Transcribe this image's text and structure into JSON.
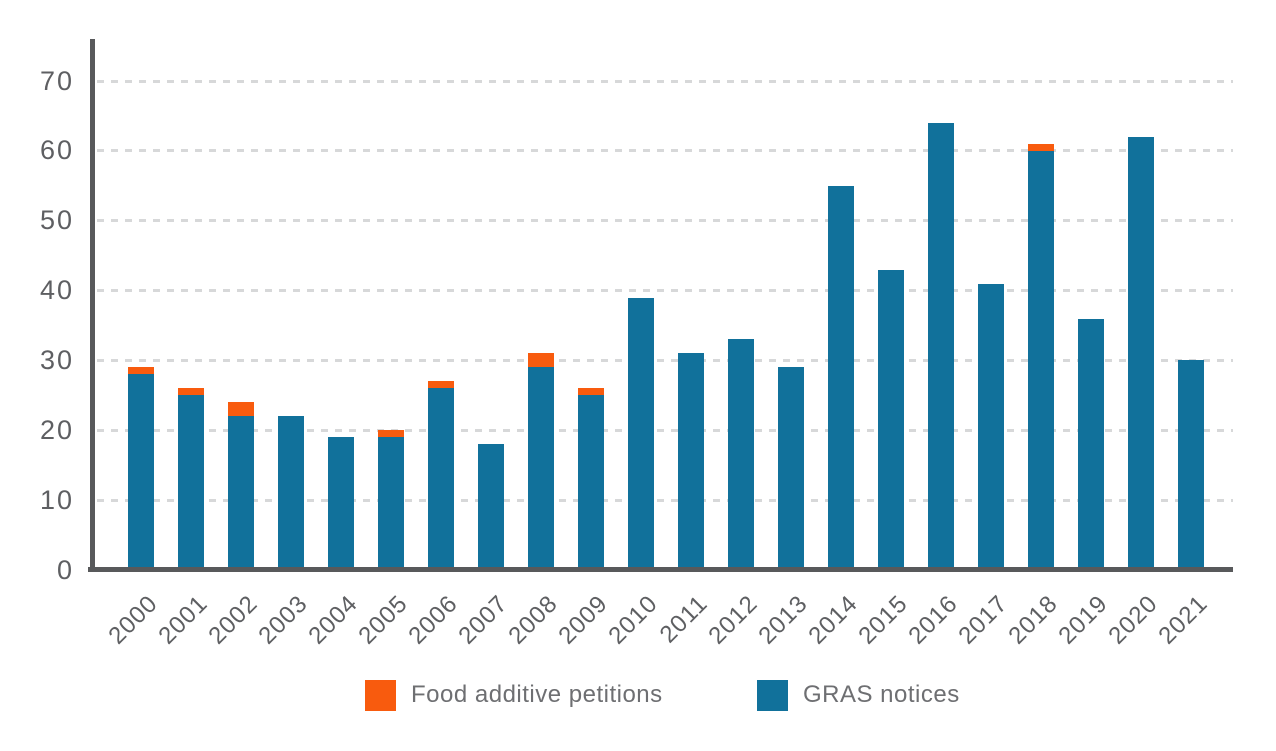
{
  "chart_data": {
    "type": "bar",
    "stacked": true,
    "title": "",
    "xlabel": "",
    "ylabel": "",
    "categories": [
      "2000",
      "2001",
      "2002",
      "2003",
      "2004",
      "2005",
      "2006",
      "2007",
      "2008",
      "2009",
      "2010",
      "2011",
      "2012",
      "2013",
      "2014",
      "2015",
      "2016",
      "2017",
      "2018",
      "2019",
      "2020",
      "2021"
    ],
    "series": [
      {
        "name": "Food additive petitions",
        "color": "#F85B0E",
        "stack_position": "top",
        "values": [
          1,
          1,
          2,
          0,
          0,
          1,
          1,
          0,
          2,
          1,
          0,
          0,
          0,
          0,
          0,
          0,
          0,
          0,
          1,
          0,
          0,
          0
        ]
      },
      {
        "name": "GRAS notices",
        "color": "#11719B",
        "stack_position": "bottom",
        "values": [
          28,
          25,
          22,
          22,
          19,
          19,
          26,
          18,
          29,
          25,
          39,
          31,
          33,
          29,
          55,
          43,
          64,
          41,
          60,
          36,
          62,
          30
        ]
      }
    ],
    "totals": [
      29,
      26,
      24,
      22,
      19,
      20,
      27,
      18,
      31,
      26,
      39,
      31,
      33,
      29,
      55,
      43,
      64,
      41,
      61,
      36,
      62,
      30
    ],
    "ylim": [
      0,
      75
    ],
    "yticks": [
      "0",
      "10",
      "20",
      "30",
      "40",
      "50",
      "60",
      "70"
    ],
    "grid": "horizontal dashed",
    "legend_position": "bottom"
  },
  "legend": {
    "items": [
      {
        "label": "Food additive petitions",
        "color": "#F85B0E"
      },
      {
        "label": "GRAS notices",
        "color": "#11719B"
      }
    ]
  },
  "colors": {
    "axis": "#58595B",
    "gridline": "#D7D8D9",
    "tick_text": "#5E5F62",
    "legend_text": "#6E6F72",
    "background": "#FFFFFF"
  }
}
